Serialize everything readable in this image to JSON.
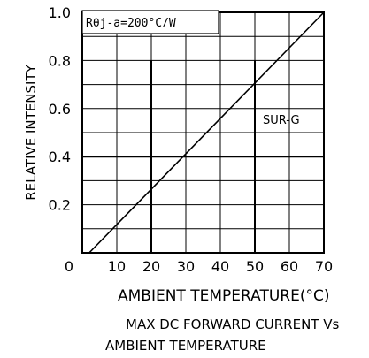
{
  "chart_data": {
    "type": "line",
    "title": "MAX DC FORWARD CURRENT Vs AMBIENT TEMPERATURE",
    "title_lines": [
      "MAX DC FORWARD CURRENT Vs",
      "AMBIENT TEMPERATURE"
    ],
    "xlabel": "AMBIENT TEMPERATURE(°C)",
    "ylabel": "RELATIVE INTENSITY",
    "xlim": [
      0,
      70
    ],
    "ylim": [
      0,
      1.0
    ],
    "x_ticks": [
      "0",
      "10",
      "20",
      "30",
      "40",
      "50",
      "60",
      "70"
    ],
    "y_ticks": [
      "0.2",
      "0.4",
      "0.6",
      "0.8",
      "1.0"
    ],
    "grid": true,
    "condition_label": "Rθj-a=200°C/W",
    "series": [
      {
        "name": "SUR-G",
        "x": [
          2,
          70
        ],
        "y": [
          0.0,
          1.0
        ]
      }
    ],
    "reference_lines": {
      "horizontal_y": 0.4,
      "vertical_x": [
        20,
        50
      ]
    }
  },
  "colors": {
    "line": "#000000",
    "grid": "#000000",
    "background": "#ffffff"
  }
}
